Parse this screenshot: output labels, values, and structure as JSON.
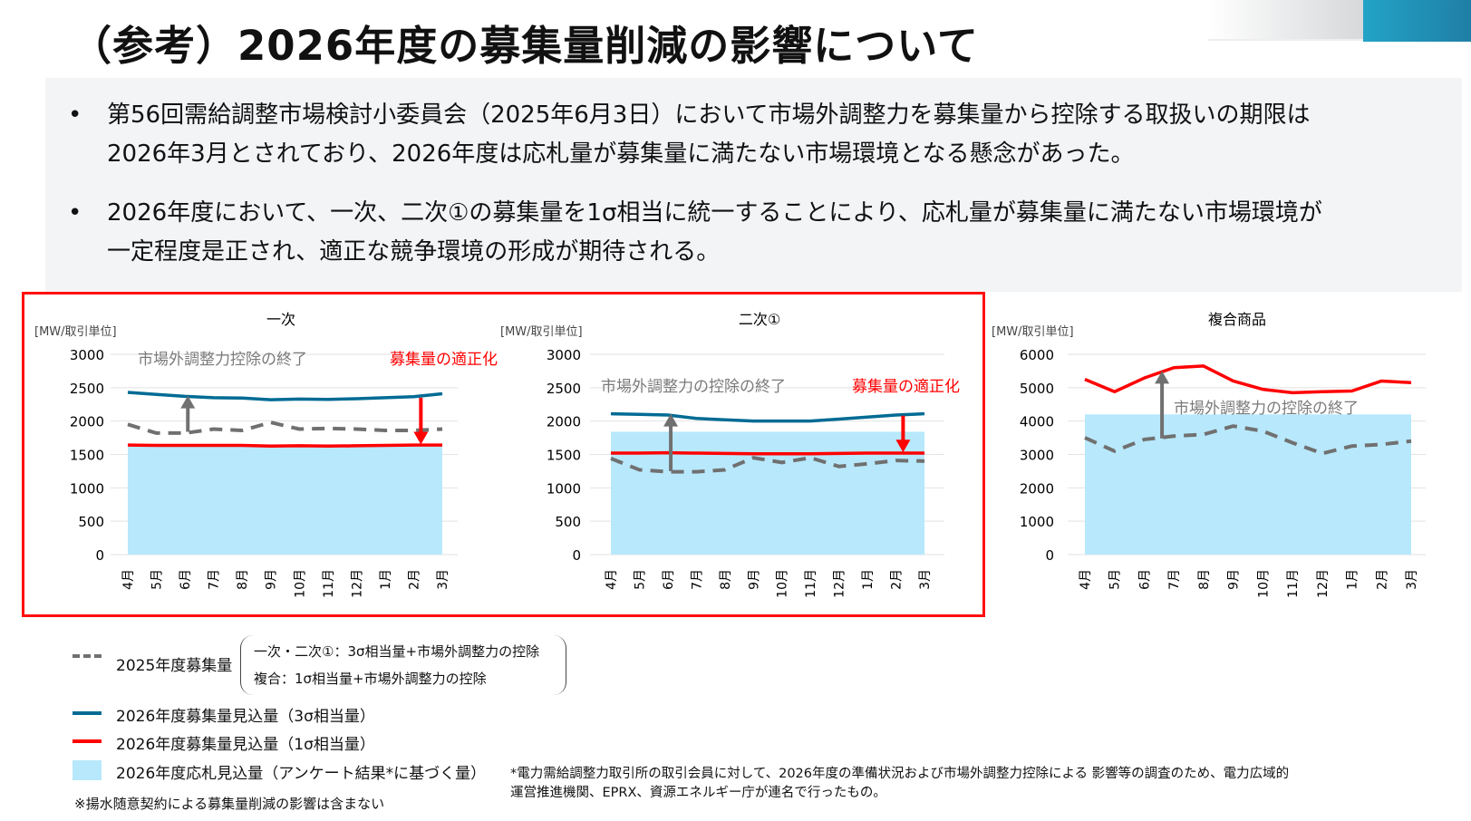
{
  "title": "（参考）2026年度の募集量削減の影響について",
  "bullets": [
    {
      "line1": "第56回需給調整市場検討小委員会（2025年6月3日）において市場外調整力を募集量から控除する取扱いの期限は",
      "line2": "2026年3月とされており、2026年度は応札量が募集量に満たない市場環境となる懸念があった。"
    },
    {
      "line1": "2026年度において、一次、二次①の募集量を1σ相当に統一することにより、応札量が募集量に満たない市場環境が",
      "line2": "一定程度是正され、適正な競争環境の形成が期待される。"
    }
  ],
  "bullet_symbol": "•",
  "colors": {
    "blue_3sigma": "#006b94",
    "red_1sigma": "#ff0000",
    "dashed_2025": "#707070",
    "bid_fill": "#b8e8fb",
    "frame": "#ff1010"
  },
  "chart_data": [
    {
      "type": "line",
      "title": "一次",
      "ylabel": "[MW/取引単位]",
      "ylim": [
        0,
        3000
      ],
      "yticks": [
        0,
        500,
        1000,
        1500,
        2000,
        2500,
        3000
      ],
      "categories": [
        "4月",
        "5月",
        "6月",
        "7月",
        "8月",
        "9月",
        "10月",
        "11月",
        "12月",
        "1月",
        "2月",
        "3月"
      ],
      "series": [
        {
          "name": "2025年度募集量",
          "style": "dashed",
          "values": [
            1950,
            1820,
            1820,
            1880,
            1860,
            1980,
            1880,
            1890,
            1880,
            1860,
            1860,
            1880
          ]
        },
        {
          "name": "2026年度募集量見込量（3σ相当量）",
          "style": "blue",
          "values": [
            2430,
            2400,
            2370,
            2350,
            2345,
            2320,
            2330,
            2325,
            2335,
            2350,
            2365,
            2410
          ]
        },
        {
          "name": "2026年度募集量見込量（1σ相当量）",
          "style": "red",
          "values": [
            1640,
            1635,
            1635,
            1635,
            1635,
            1625,
            1630,
            1625,
            1630,
            1635,
            1640,
            1640
          ]
        }
      ],
      "bid_value": 1615,
      "annotations": [
        {
          "text": "市場外調整力控除の終了",
          "color": "gray"
        },
        {
          "text": "募集量の適正化",
          "color": "red"
        }
      ],
      "arrows": [
        {
          "color": "gray",
          "at": "6月",
          "from": 1840,
          "to": 2380
        },
        {
          "color": "red",
          "at": "2月",
          "from": 2350,
          "to": 1650
        }
      ]
    },
    {
      "type": "line",
      "title": "二次①",
      "ylabel": "[MW/取引単位]",
      "ylim": [
        0,
        3000
      ],
      "yticks": [
        0,
        500,
        1000,
        1500,
        2000,
        2500,
        3000
      ],
      "categories": [
        "4月",
        "5月",
        "6月",
        "7月",
        "8月",
        "9月",
        "10月",
        "11月",
        "12月",
        "1月",
        "2月",
        "3月"
      ],
      "series": [
        {
          "name": "2025年度募集量",
          "style": "dashed",
          "values": [
            1440,
            1270,
            1240,
            1240,
            1270,
            1450,
            1380,
            1450,
            1320,
            1360,
            1410,
            1400
          ]
        },
        {
          "name": "2026年度募集量見込量（3σ相当量）",
          "style": "blue",
          "values": [
            2110,
            2100,
            2090,
            2040,
            2020,
            2000,
            2000,
            2000,
            2030,
            2060,
            2090,
            2110
          ]
        },
        {
          "name": "2026年度募集量見込量（1σ相当量）",
          "style": "red",
          "values": [
            1520,
            1520,
            1525,
            1520,
            1515,
            1510,
            1510,
            1510,
            1515,
            1520,
            1520,
            1520
          ]
        }
      ],
      "bid_value": 1840,
      "annotations": [
        {
          "text": "市場外調整力の控除の終了",
          "color": "gray"
        },
        {
          "text": "募集量の適正化",
          "color": "red"
        }
      ],
      "arrows": [
        {
          "color": "gray",
          "at": "6月",
          "from": 1250,
          "to": 2110
        },
        {
          "color": "red",
          "at": "2月",
          "from": 2080,
          "to": 1530
        }
      ]
    },
    {
      "type": "line",
      "title": "複合商品",
      "ylabel": "[MW/取引単位]",
      "ylim": [
        0,
        6000
      ],
      "yticks": [
        0,
        1000,
        2000,
        3000,
        4000,
        5000,
        6000
      ],
      "categories": [
        "4月",
        "5月",
        "6月",
        "7月",
        "8月",
        "9月",
        "10月",
        "11月",
        "12月",
        "1月",
        "2月",
        "3月"
      ],
      "series": [
        {
          "name": "2025年度募集量",
          "style": "dashed",
          "values": [
            3500,
            3100,
            3450,
            3550,
            3600,
            3850,
            3700,
            3350,
            3030,
            3250,
            3300,
            3400
          ]
        },
        {
          "name": "2026年度募集量見込量（1σ相当量）",
          "style": "red",
          "values": [
            5250,
            4880,
            5290,
            5600,
            5650,
            5200,
            4950,
            4850,
            4880,
            4900,
            5200,
            5150
          ]
        }
      ],
      "bid_value": 4200,
      "annotations": [
        {
          "text": "市場外調整力の控除の終了",
          "color": "gray"
        }
      ],
      "arrows": [
        {
          "color": "gray",
          "at": "6月",
          "from": 3480,
          "to": 5500
        }
      ]
    }
  ],
  "legend": {
    "dashed": "2025年度募集量",
    "dashed_detail1": "一次・二次①：3σ相当量+市場外調整力の控除",
    "dashed_detail2": "複合：1σ相当量+市場外調整力の控除",
    "blue": "2026年度募集量見込量（3σ相当量）",
    "red": "2026年度募集量見込量（1σ相当量）",
    "fill": "2026年度応札見込量（アンケート結果*に基づく量）",
    "note": "※揚水随意契約による募集量削減の影響は含まない"
  },
  "footnote": {
    "line1": "*電力需給調整力取引所の取引会員に対して、2026年度の準備状況および市場外調整力控除による 影響等の調査のため、電力広域的",
    "line2": "運営推進機関、EPRX、資源エネルギー庁が連名で行ったもの。"
  }
}
